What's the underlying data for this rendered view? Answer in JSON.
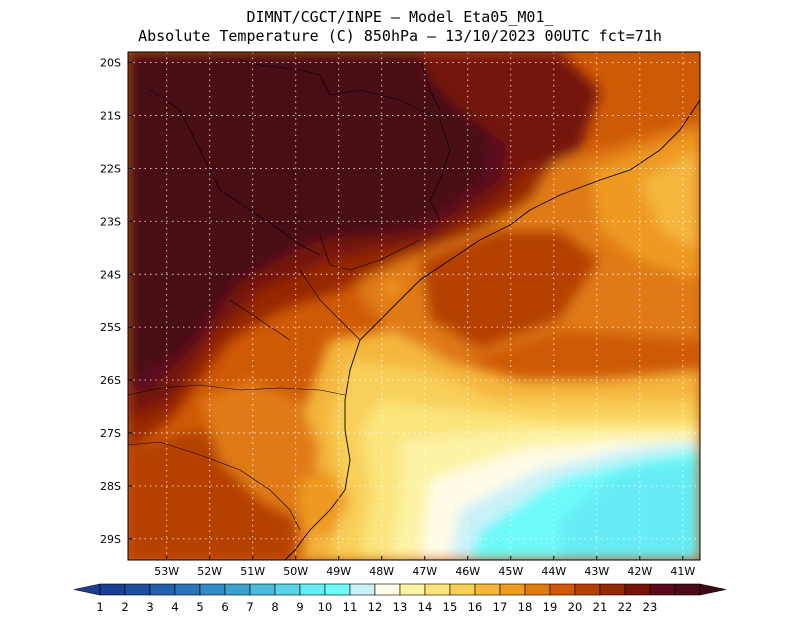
{
  "header": {
    "line1": "DIMNT/CGCT/INPE —  Model Eta05_M01_",
    "line2": "Absolute Temperature (C) 850hPa —  13/10/2023 00UTC fct=71h"
  },
  "map": {
    "lat_labels": [
      "20S",
      "21S",
      "22S",
      "23S",
      "24S",
      "25S",
      "26S",
      "27S",
      "28S",
      "29S"
    ],
    "lon_labels": [
      "53W",
      "52W",
      "51W",
      "50W",
      "49W",
      "48W",
      "47W",
      "46W",
      "45W",
      "44W",
      "43W",
      "42W",
      "41W"
    ],
    "lon_range": [
      -53.9,
      -40.6
    ],
    "lat_range": [
      -29.4,
      -19.8
    ]
  },
  "colorbar": {
    "labels": [
      "1",
      "2",
      "3",
      "4",
      "5",
      "6",
      "7",
      "8",
      "9",
      "10",
      "11",
      "12",
      "13",
      "14",
      "15",
      "16",
      "17",
      "18",
      "19",
      "20",
      "21",
      "22",
      "23"
    ],
    "colors": [
      "#1a3f8f",
      "#1f4e9c",
      "#2560ab",
      "#2b74b8",
      "#338ac4",
      "#3da1cf",
      "#4cbad9",
      "#5bd2e6",
      "#66ecf4",
      "#6dfaf9",
      "#c9f1f8",
      "#fffbe6",
      "#fdf3a4",
      "#fbe47a",
      "#f8cf58",
      "#f4b63c",
      "#ee9a23",
      "#e07a12",
      "#cf5a06",
      "#b53f04",
      "#952806",
      "#751409",
      "#5a0a1a",
      "#4a0a18"
    ],
    "arrow_left": "#1a3f8f",
    "arrow_right": "#3e0815"
  }
}
